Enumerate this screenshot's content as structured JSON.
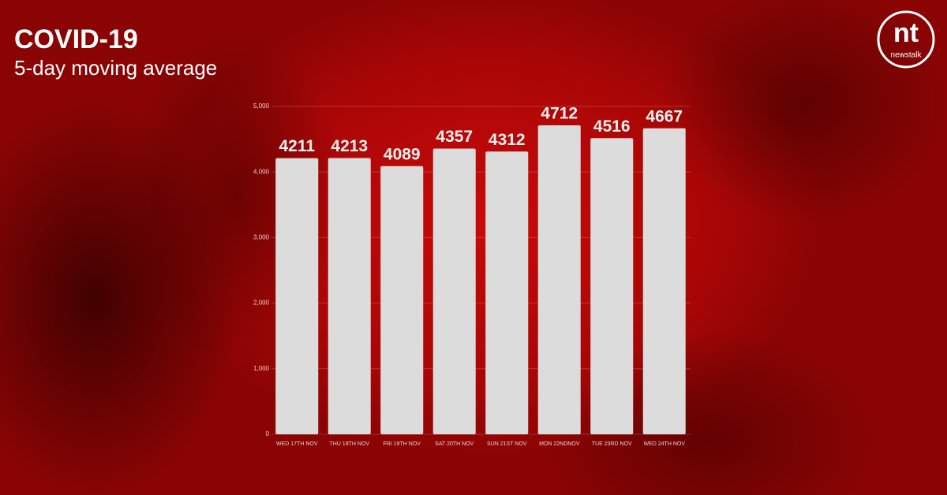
{
  "chart_data": {
    "type": "bar",
    "title": "COVID-19",
    "subtitle": "5-day moving average",
    "categories": [
      "WED 17TH NOV",
      "THU 18TH NOV",
      "FRI 19TH NOV",
      "SAT 20TH NOV",
      "SUN 21ST NOV",
      "MON 22NDNOV",
      "TUE 23RD NOV",
      "WED 24TH NOV"
    ],
    "values": [
      4211,
      4213,
      4089,
      4357,
      4312,
      4712,
      4516,
      4667
    ],
    "color": "#dcdcdc",
    "ylim": [
      0,
      5000
    ],
    "yticks": [
      0,
      {
        "value": 1000,
        "label": "1,000"
      },
      {
        "value": 2000,
        "label": "2,000"
      },
      {
        "value": 3000,
        "label": "3,000"
      },
      {
        "value": 4000,
        "label": "4,000"
      },
      {
        "value": 5000,
        "label": "5,000"
      }
    ],
    "grid": true
  },
  "logo": {
    "mark": "nt",
    "name": "newstalk"
  }
}
